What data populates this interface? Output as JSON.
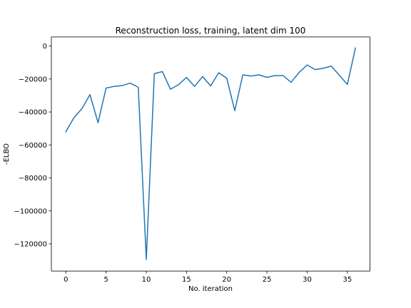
{
  "chart_data": {
    "type": "line",
    "title": "Reconstruction loss, training, latent dim 100",
    "xlabel": "No. iteration",
    "ylabel": "-ELBO",
    "xlim": [
      -1.8,
      37.8
    ],
    "ylim": [
      -136500,
      5500
    ],
    "xticks": [
      0,
      5,
      10,
      15,
      20,
      25,
      30,
      35
    ],
    "xtick_labels": [
      "0",
      "5",
      "10",
      "15",
      "20",
      "25",
      "30",
      "35"
    ],
    "yticks": [
      0,
      -20000,
      -40000,
      -60000,
      -80000,
      -100000,
      -120000
    ],
    "ytick_labels": [
      "0",
      "−20000",
      "−40000",
      "−60000",
      "−80000",
      "−100000",
      "−120000"
    ],
    "grid": false,
    "legend": "none",
    "series": [
      {
        "color": "#1f77b4",
        "x": [
          0,
          1,
          2,
          3,
          4,
          5,
          6,
          7,
          8,
          9,
          10,
          11,
          12,
          13,
          14,
          15,
          16,
          17,
          18,
          19,
          20,
          21,
          22,
          23,
          24,
          25,
          26,
          27,
          28,
          29,
          30,
          31,
          32,
          33,
          34,
          35,
          36
        ],
        "values": [
          -52000,
          -43500,
          -38000,
          -29500,
          -46500,
          -25500,
          -24500,
          -24000,
          -22500,
          -25000,
          -129500,
          -16800,
          -15500,
          -26200,
          -23500,
          -19000,
          -24500,
          -18500,
          -24200,
          -16200,
          -19500,
          -39200,
          -17500,
          -18200,
          -17500,
          -19000,
          -17900,
          -17900,
          -22000,
          -16000,
          -11500,
          -14300,
          -13500,
          -12200,
          -17700,
          -23300,
          -1200
        ]
      }
    ]
  }
}
